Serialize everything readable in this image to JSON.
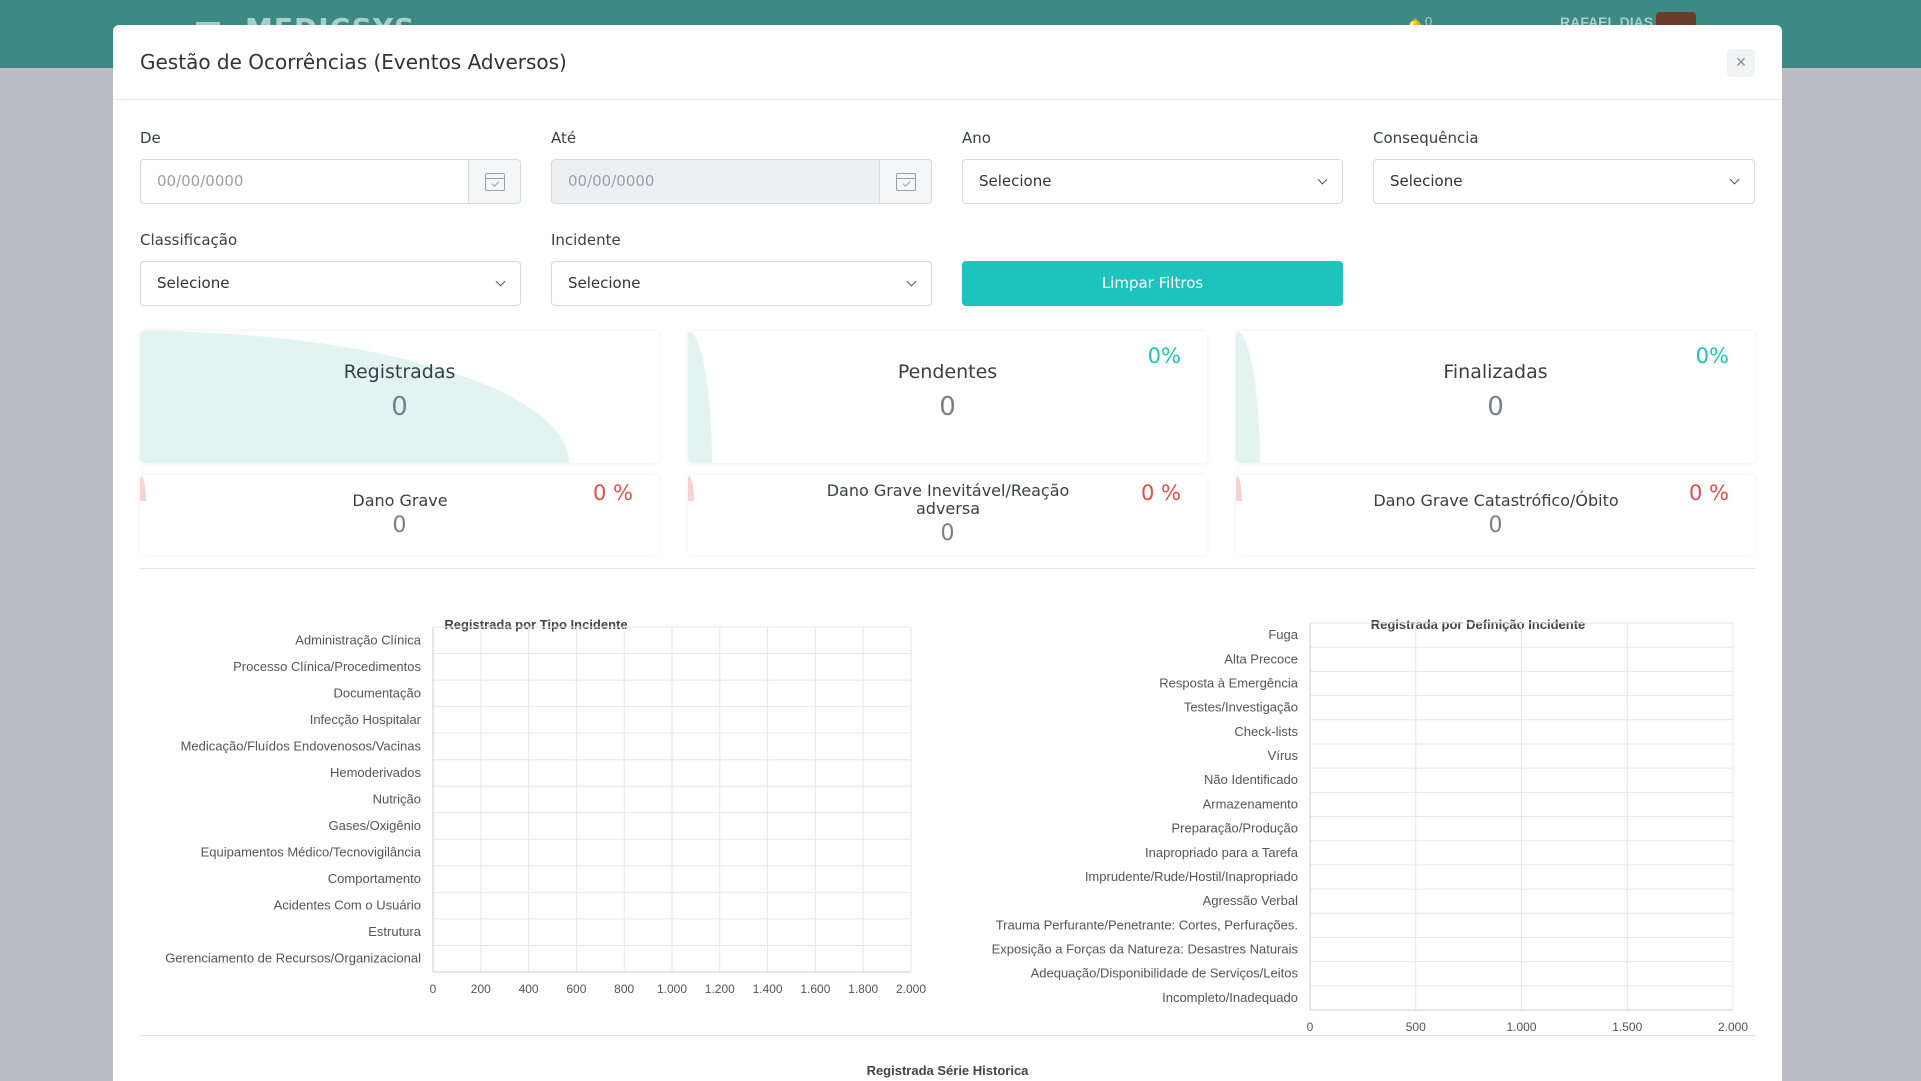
{
  "app": {
    "brand": "MEDICSYS",
    "notification_count": "0",
    "user_name": "RAFAEL DIAS"
  },
  "modal": {
    "title": "Gestão de Ocorrências (Eventos Adversos)",
    "close_icon": "close-icon"
  },
  "filters": {
    "de": {
      "label": "De",
      "placeholder": "00/00/0000"
    },
    "ate": {
      "label": "Até",
      "placeholder": "00/00/0000"
    },
    "ano": {
      "label": "Ano",
      "value": "Selecione"
    },
    "consequencia": {
      "label": "Consequência",
      "value": "Selecione"
    },
    "classificacao": {
      "label": "Classificação",
      "value": "Selecione"
    },
    "incidente": {
      "label": "Incidente",
      "value": "Selecione"
    },
    "clear_button": "Limpar Filtros"
  },
  "stats": [
    {
      "label": "Registradas",
      "value": "0",
      "pct": ""
    },
    {
      "label": "Pendentes",
      "value": "0",
      "pct": "0%"
    },
    {
      "label": "Finalizadas",
      "value": "0",
      "pct": "0%"
    }
  ],
  "danos": [
    {
      "label": "Dano Grave",
      "value": "0",
      "pct": "0 %"
    },
    {
      "label": "Dano Grave Inevitável/Reação adversa",
      "value": "0",
      "pct": "0 %"
    },
    {
      "label": "Dano Grave Catastrófico/Óbito",
      "value": "0",
      "pct": "0 %"
    }
  ],
  "colors": {
    "accent": "#1cc4bd",
    "danger": "#e74c4c",
    "header": "#3d8a85"
  },
  "chart_data": [
    {
      "type": "bar",
      "orientation": "horizontal",
      "title": "Registrada por Tipo Incidente",
      "categories": [
        "Administração Clínica",
        "Processo Clínica/Procedimentos",
        "Documentação",
        "Infecção Hospitalar",
        "Medicação/Fluídos Endovenosos/Vacinas",
        "Hemoderivados",
        "Nutrição",
        "Gases/Oxigênio",
        "Equipamentos Médico/Tecnovigilância",
        "Comportamento",
        "Acidentes Com o Usuário",
        "Estrutura",
        "Gerenciamento de Recursos/Organizacional"
      ],
      "values": [
        0,
        0,
        0,
        0,
        0,
        0,
        0,
        0,
        0,
        0,
        0,
        0,
        0
      ],
      "xlim": [
        0,
        2000
      ],
      "xticks": [
        "0",
        "200",
        "400",
        "600",
        "800",
        "1.000",
        "1.200",
        "1.400",
        "1.600",
        "1.800",
        "2.000"
      ],
      "grid": true
    },
    {
      "type": "bar",
      "orientation": "horizontal",
      "title": "Registrada por Definição Incidente",
      "categories": [
        "Fuga",
        "Alta Precoce",
        "Resposta à Emergência",
        "Testes/Investigação",
        "Check-lists",
        "Vírus",
        "Não Identificado",
        "Armazenamento",
        "Preparação/Produção",
        "Inapropriado para a Tarefa",
        "Imprudente/Rude/Hostil/Inapropriado",
        "Agressão Verbal",
        "Trauma Perfurante/Penetrante: Cortes, Perfurações.",
        "Exposição a Forças da Natureza: Desastres Naturais",
        "Adequação/Disponibilidade de Serviços/Leitos",
        "Incompleto/Inadequado"
      ],
      "values": [
        0,
        0,
        0,
        0,
        0,
        0,
        0,
        0,
        0,
        0,
        0,
        0,
        0,
        0,
        0,
        0
      ],
      "xlim": [
        0,
        2000
      ],
      "xticks": [
        "0",
        "500",
        "1.000",
        "1.500",
        "2.000"
      ],
      "grid": true
    }
  ],
  "series_section_title": "Registrada Série Historica"
}
